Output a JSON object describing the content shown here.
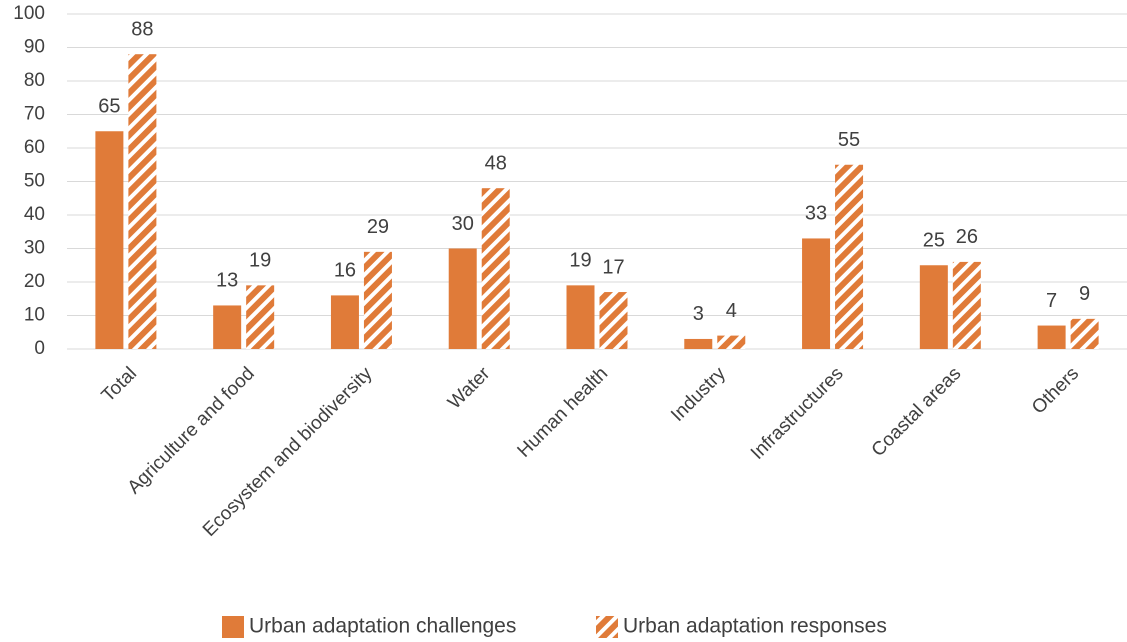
{
  "chart_data": {
    "type": "bar",
    "categories": [
      "Total",
      "Agriculture and food",
      "Ecosystem and biodiversity",
      "Water",
      "Human health",
      "Industry",
      "Infrastructures",
      "Coastal areas",
      "Others"
    ],
    "series": [
      {
        "name": "Urban adaptation challenges",
        "color": "#e07b39",
        "pattern": "solid",
        "values": [
          65,
          13,
          16,
          30,
          19,
          3,
          33,
          25,
          7
        ]
      },
      {
        "name": "Urban adaptation responses",
        "color": "#e07b39",
        "pattern": "hatch",
        "values": [
          88,
          19,
          29,
          48,
          17,
          4,
          55,
          26,
          9
        ]
      }
    ],
    "ylim": [
      0,
      100
    ],
    "yticks": [
      0,
      10,
      20,
      30,
      40,
      50,
      60,
      70,
      80,
      90,
      100
    ],
    "grid": true,
    "legend": "bottom"
  }
}
